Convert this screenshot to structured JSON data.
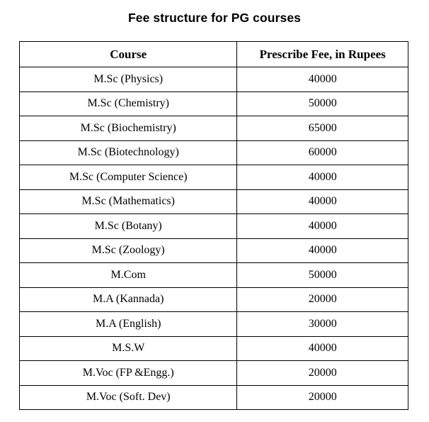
{
  "title": "Fee structure for PG courses",
  "table": {
    "headers": [
      "Course",
      "Prescribe Fee, in Rupees"
    ],
    "rows": [
      {
        "course": "M.Sc (Physics)",
        "fee": "40000"
      },
      {
        "course": "M.Sc (Chemistry)",
        "fee": "50000"
      },
      {
        "course": "M.Sc (Biochemistry)",
        "fee": "65000"
      },
      {
        "course": "M.Sc (Biotechnology)",
        "fee": "60000"
      },
      {
        "course": "M.Sc (Computer Science)",
        "fee": "40000"
      },
      {
        "course": "M.Sc (Mathematics)",
        "fee": "40000"
      },
      {
        "course": "M.Sc (Botany)",
        "fee": "40000"
      },
      {
        "course": "M.Sc (Zoology)",
        "fee": "40000"
      },
      {
        "course": "M.Com",
        "fee": "50000"
      },
      {
        "course": "M.A (Kannada)",
        "fee": "20000"
      },
      {
        "course": "M.A (English)",
        "fee": "30000"
      },
      {
        "course": "M.S.W",
        "fee": "40000"
      },
      {
        "course": "M.Voc (FP &Engg.)",
        "fee": "20000"
      },
      {
        "course": "M.Voc (Soft. Dev)",
        "fee": "20000"
      }
    ]
  },
  "colors": {
    "text": "#000000",
    "border": "#000000",
    "background": "#ffffff"
  }
}
